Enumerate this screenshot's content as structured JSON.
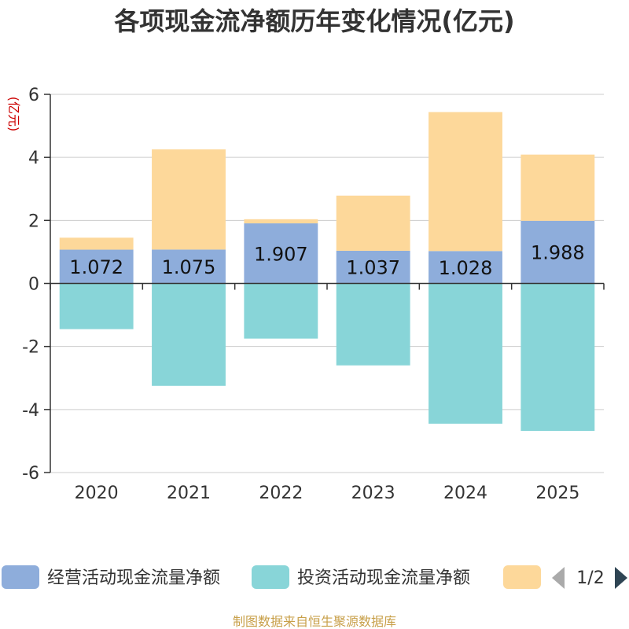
{
  "chart_data": {
    "type": "bar",
    "stacked": true,
    "title": "各项现金流净额历年变化情况(亿元)",
    "ylabel": "(亿元)",
    "categories": [
      "2020",
      "2021",
      "2022",
      "2023",
      "2024",
      "2025"
    ],
    "ylim": [
      -6,
      6
    ],
    "yticks": [
      -6,
      -4,
      -2,
      0,
      2,
      4,
      6
    ],
    "grid": true,
    "legend_position": "bottom",
    "series": [
      {
        "name": "经营活动现金流量净额",
        "color": "#8eaddb",
        "values": [
          1.072,
          1.075,
          1.907,
          1.037,
          1.028,
          1.988
        ],
        "labels": [
          "1.072",
          "1.075",
          "1.907",
          "1.037",
          "1.028",
          "1.988"
        ]
      },
      {
        "name": "投资活动现金流量净额",
        "color": "#88d5d8",
        "values": [
          -1.45,
          -3.25,
          -1.75,
          -2.6,
          -4.45,
          -4.68
        ]
      },
      {
        "name": "",
        "color": "#fdd89a",
        "values": [
          0.38,
          3.18,
          0.13,
          1.75,
          4.41,
          2.1
        ]
      }
    ]
  },
  "legend": {
    "page_indicator": "1/2"
  },
  "footer": {
    "source": "制图数据来自恒生聚源数据库"
  }
}
